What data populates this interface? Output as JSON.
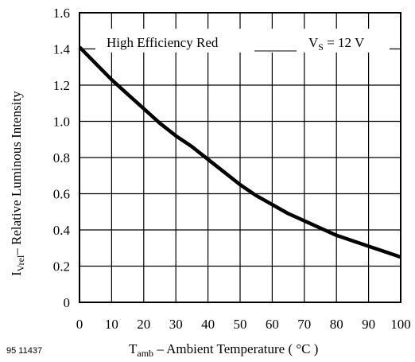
{
  "chart_data": {
    "type": "line",
    "xlabel": {
      "main": "T",
      "sub": "amb",
      "rest": " – Ambient Temperature ( °C )"
    },
    "ylabel": {
      "main": "I",
      "sub": "Vrel",
      "rest": "– Relative Luminous Intensity"
    },
    "xlim": [
      0,
      100
    ],
    "ylim": [
      0,
      1.6
    ],
    "xticks": [
      "0",
      "10",
      "20",
      "30",
      "40",
      "50",
      "60",
      "70",
      "80",
      "90",
      "100"
    ],
    "yticks": [
      "0",
      "0.2",
      "0.4",
      "0.6",
      "0.8",
      "1.0",
      "1.2",
      "1.4",
      "1.6"
    ],
    "grid": true,
    "series": [
      {
        "x": [
          0,
          5,
          10,
          15,
          20,
          25,
          30,
          35,
          40,
          45,
          50,
          55,
          60,
          65,
          70,
          75,
          80,
          85,
          90,
          95,
          100
        ],
        "y": [
          1.41,
          1.32,
          1.23,
          1.15,
          1.07,
          0.99,
          0.92,
          0.86,
          0.79,
          0.72,
          0.65,
          0.59,
          0.54,
          0.49,
          0.45,
          0.41,
          0.37,
          0.34,
          0.31,
          0.28,
          0.25
        ]
      }
    ],
    "annotations": {
      "curve_label": "High Efficiency Red",
      "condition": {
        "main": "V",
        "sub": "S",
        "rest": " = 12 V"
      }
    },
    "figure_id": "95 11437"
  }
}
